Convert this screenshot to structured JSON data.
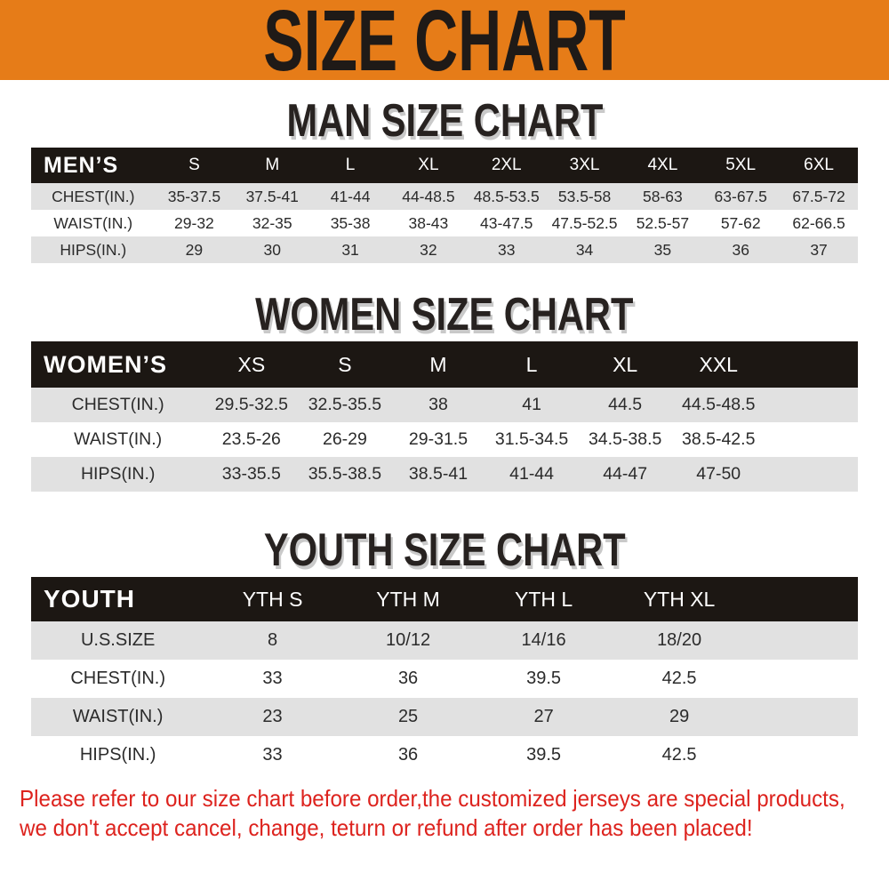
{
  "banner": {
    "title": "SIZE CHART"
  },
  "colors": {
    "accent_orange": "#e67c18",
    "table_header_black": "#1c1713",
    "row_gray": "#e1e1e1",
    "heading_black": "#272220",
    "footer_red": "#dd231e"
  },
  "chart_data": [
    {
      "type": "table",
      "title": "MAN SIZE CHART",
      "header_label": "MEN’S",
      "columns": [
        "S",
        "M",
        "L",
        "XL",
        "2XL",
        "3XL",
        "4XL",
        "5XL",
        "6XL"
      ],
      "rows": [
        {
          "label": "CHEST(IN.)",
          "values": [
            "35-37.5",
            "37.5-41",
            "41-44",
            "44-48.5",
            "48.5-53.5",
            "53.5-58",
            "58-63",
            "63-67.5",
            "67.5-72"
          ]
        },
        {
          "label": "WAIST(IN.)",
          "values": [
            "29-32",
            "32-35",
            "35-38",
            "38-43",
            "43-47.5",
            "47.5-52.5",
            "52.5-57",
            "57-62",
            "62-66.5"
          ]
        },
        {
          "label": "HIPS(IN.)",
          "values": [
            "29",
            "30",
            "31",
            "32",
            "33",
            "34",
            "35",
            "36",
            "37"
          ]
        }
      ]
    },
    {
      "type": "table",
      "title": "WOMEN SIZE CHART",
      "header_label": "WOMEN’S",
      "columns": [
        "XS",
        "S",
        "M",
        "L",
        "XL",
        "XXL"
      ],
      "rows": [
        {
          "label": "CHEST(IN.)",
          "values": [
            "29.5-32.5",
            "32.5-35.5",
            "38",
            "41",
            "44.5",
            "44.5-48.5"
          ]
        },
        {
          "label": "WAIST(IN.)",
          "values": [
            "23.5-26",
            "26-29",
            "29-31.5",
            "31.5-34.5",
            "34.5-38.5",
            "38.5-42.5"
          ]
        },
        {
          "label": "HIPS(IN.)",
          "values": [
            "33-35.5",
            "35.5-38.5",
            "38.5-41",
            "41-44",
            "44-47",
            "47-50"
          ]
        }
      ]
    },
    {
      "type": "table",
      "title": "YOUTH SIZE CHART",
      "header_label": "YOUTH",
      "columns": [
        "YTH S",
        "YTH M",
        "YTH L",
        "YTH XL"
      ],
      "rows": [
        {
          "label": "U.S.SIZE",
          "values": [
            "8",
            "10/12",
            "14/16",
            "18/20"
          ]
        },
        {
          "label": "CHEST(IN.)",
          "values": [
            "33",
            "36",
            "39.5",
            "42.5"
          ]
        },
        {
          "label": "WAIST(IN.)",
          "values": [
            "23",
            "25",
            "27",
            "29"
          ]
        },
        {
          "label": "HIPS(IN.)",
          "values": [
            "33",
            "36",
            "39.5",
            "42.5"
          ]
        }
      ]
    }
  ],
  "footer": {
    "lines": [
      "Please refer to our size chart before order,the customized jerseys are special products,",
      "we don't accept cancel, change, teturn or refund after order has been placed!"
    ]
  }
}
